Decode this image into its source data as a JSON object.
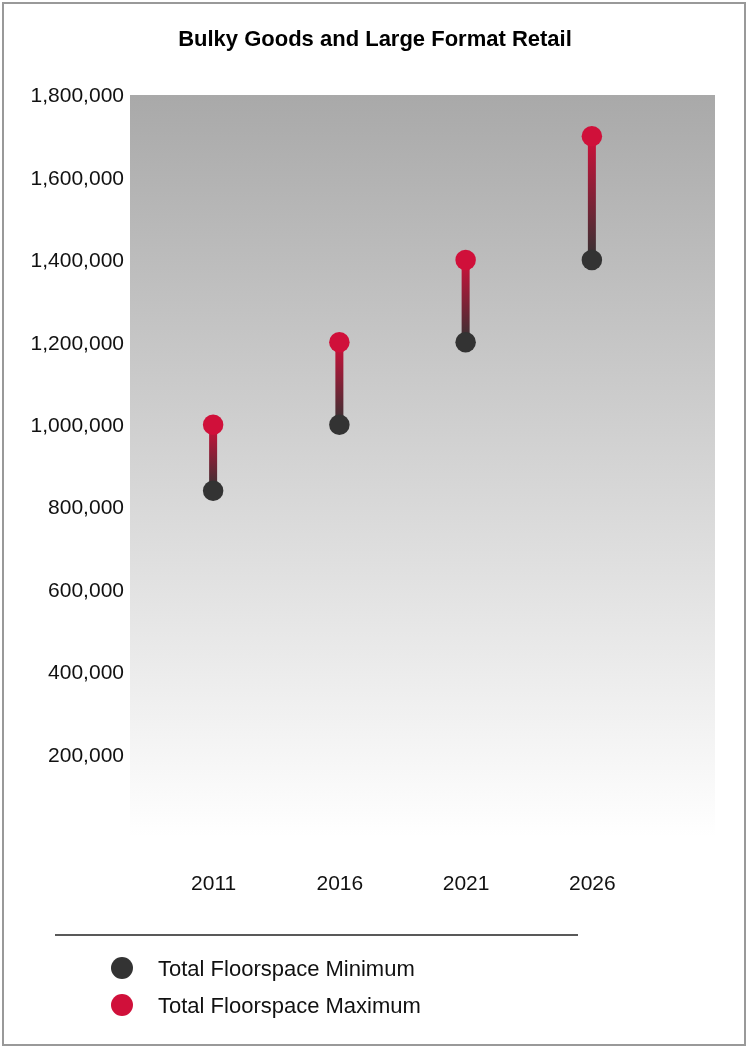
{
  "chart_data": {
    "type": "scatter",
    "title": "Bulky Goods and Large Format Retail",
    "categories": [
      "2011",
      "2016",
      "2021",
      "2026"
    ],
    "series": [
      {
        "name": "Total Floorspace Minimum",
        "color": "#333333",
        "values": [
          840000,
          1000000,
          1200000,
          1400000
        ]
      },
      {
        "name": "Total Floorspace Maximum",
        "color": "#d0103a",
        "values": [
          1000000,
          1200000,
          1400000,
          1700000
        ]
      }
    ],
    "ylim": [
      0,
      1800000
    ],
    "yticks": [
      {
        "value": 200000,
        "label": "200,000"
      },
      {
        "value": 400000,
        "label": "400,000"
      },
      {
        "value": 600000,
        "label": "600,000"
      },
      {
        "value": 800000,
        "label": "800,000"
      },
      {
        "value": 1000000,
        "label": "1,000,000"
      },
      {
        "value": 1200000,
        "label": "1,200,000"
      },
      {
        "value": 1400000,
        "label": "1,400,000"
      },
      {
        "value": 1600000,
        "label": "1,600,000"
      },
      {
        "value": 1800000,
        "label": "1,800,000"
      }
    ],
    "legend": "bottom left",
    "marker": "circle"
  }
}
